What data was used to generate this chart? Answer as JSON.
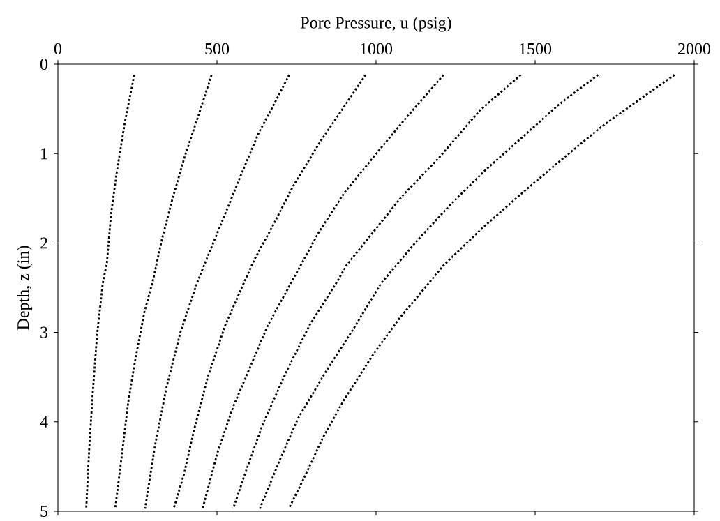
{
  "chart_data": {
    "type": "line",
    "xlabel": "Pore Pressure, u (psig)",
    "ylabel": "Depth, z (in)",
    "xlim": [
      0,
      2000
    ],
    "xticks": [
      0,
      500,
      1000,
      1500,
      2000
    ],
    "ylim": [
      5,
      0
    ],
    "yticks": [
      0,
      1,
      2,
      3,
      4,
      5
    ],
    "grid": false,
    "marker": "none",
    "line_style": "dotted",
    "series": [
      {
        "color": "#000000",
        "x": [
          240,
          210,
          185,
          167,
          154,
          141,
          123,
          109,
          98,
          89
        ],
        "values": [
          0.12,
          0.66,
          1.21,
          1.68,
          2.22,
          2.45,
          3.03,
          3.7,
          4.32,
          4.97
        ]
      },
      {
        "color": "#000000",
        "x": [
          483,
          443,
          399,
          359,
          327,
          298,
          272,
          243,
          221,
          200,
          180
        ],
        "values": [
          0.12,
          0.56,
          1.03,
          1.52,
          1.96,
          2.43,
          2.77,
          3.31,
          3.78,
          4.4,
          4.97
        ]
      },
      {
        "color": "#000000",
        "x": [
          727,
          679,
          631,
          573,
          523,
          472,
          437,
          385,
          341,
          305,
          274
        ],
        "values": [
          0.12,
          0.45,
          0.77,
          1.26,
          1.7,
          2.14,
          2.45,
          3.0,
          3.62,
          4.27,
          4.97
        ]
      },
      {
        "color": "#000000",
        "x": [
          967,
          893,
          824,
          740,
          675,
          617,
          584,
          526,
          472,
          428,
          396,
          364
        ],
        "values": [
          0.12,
          0.51,
          0.87,
          1.36,
          1.81,
          2.19,
          2.45,
          2.92,
          3.49,
          4.09,
          4.59,
          4.97
        ]
      },
      {
        "color": "#000000",
        "x": [
          1212,
          1092,
          994,
          900,
          820,
          740,
          660,
          610,
          551,
          501,
          455
        ],
        "values": [
          0.12,
          0.61,
          1.03,
          1.44,
          1.88,
          2.4,
          2.92,
          3.34,
          3.83,
          4.35,
          4.97
        ]
      },
      {
        "color": "#000000",
        "x": [
          1455,
          1328,
          1197,
          1081,
          907,
          878,
          791,
          718,
          646,
          595,
          551
        ],
        "values": [
          0.12,
          0.51,
          1.05,
          1.48,
          2.25,
          2.43,
          2.92,
          3.44,
          4.01,
          4.51,
          4.97
        ]
      },
      {
        "color": "#000000",
        "x": [
          1698,
          1575,
          1459,
          1342,
          1234,
          1125,
          1016,
          936,
          842,
          755,
          697,
          635
        ],
        "values": [
          0.12,
          0.45,
          0.82,
          1.19,
          1.57,
          1.99,
          2.45,
          2.92,
          3.44,
          3.96,
          4.43,
          4.97
        ]
      },
      {
        "color": "#000000",
        "x": [
          1938,
          1814,
          1705,
          1589,
          1466,
          1335,
          1212,
          1161,
          1074,
          994,
          900,
          834,
          776,
          726
        ],
        "values": [
          0.12,
          0.43,
          0.71,
          1.05,
          1.42,
          1.83,
          2.25,
          2.47,
          2.84,
          3.23,
          3.75,
          4.17,
          4.61,
          4.97
        ]
      }
    ]
  }
}
